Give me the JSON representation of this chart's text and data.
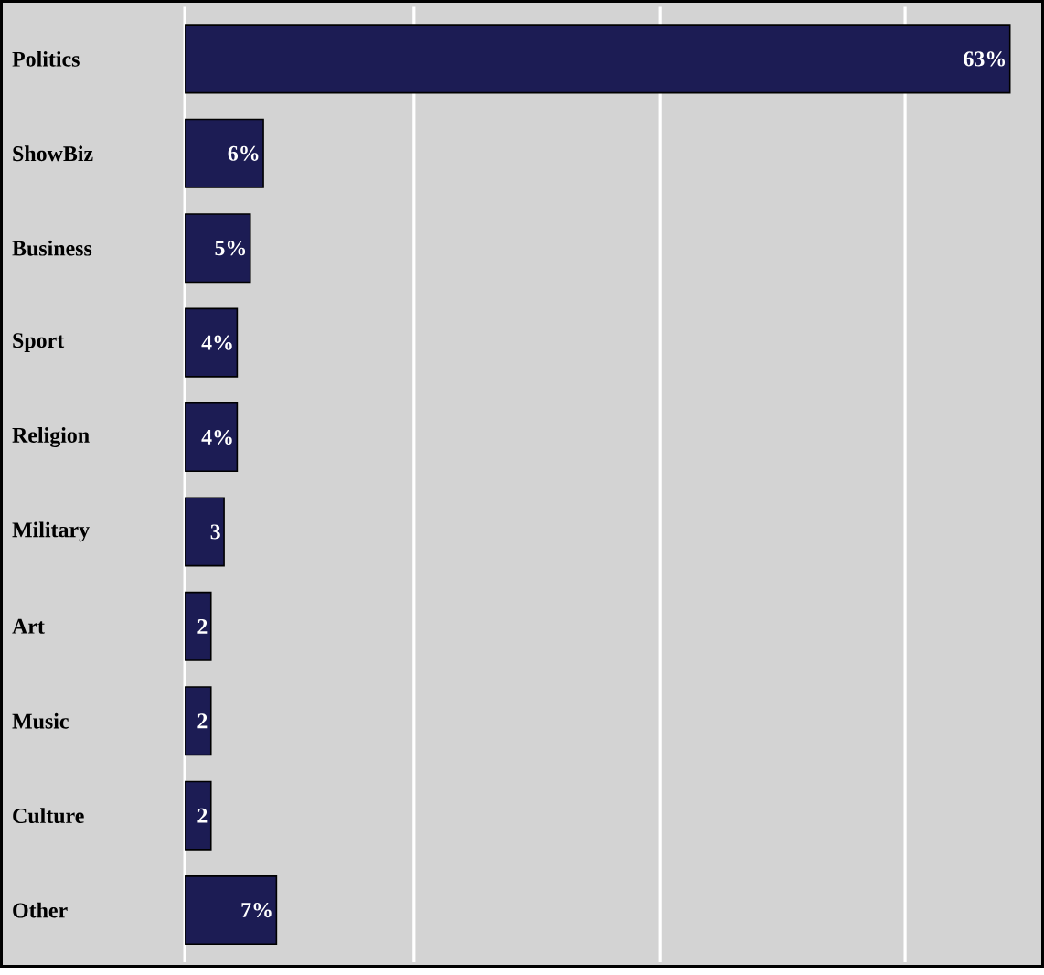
{
  "chart_data": {
    "type": "bar",
    "orientation": "horizontal",
    "categories": [
      "Politics",
      "ShowBiz",
      "Business",
      "Sport",
      "Religion",
      "Military",
      "Art",
      "Music",
      "Culture",
      "Other"
    ],
    "values": [
      63,
      6,
      5,
      4,
      4,
      3,
      2,
      2,
      2,
      7
    ],
    "value_labels": [
      "63%",
      "6%",
      "5%",
      "4%",
      "4%",
      "3",
      "2",
      "2",
      "2",
      "7%"
    ],
    "color": "#1c1c54",
    "xlim": [
      0,
      65.5
    ],
    "xticks": [
      {
        "value": 0,
        "label": null
      },
      {
        "value": 17.5,
        "label": null
      },
      {
        "value": 36.3,
        "label": null
      },
      {
        "value": 55,
        "label": null
      }
    ],
    "grid": "x",
    "tick_labels": "y"
  }
}
